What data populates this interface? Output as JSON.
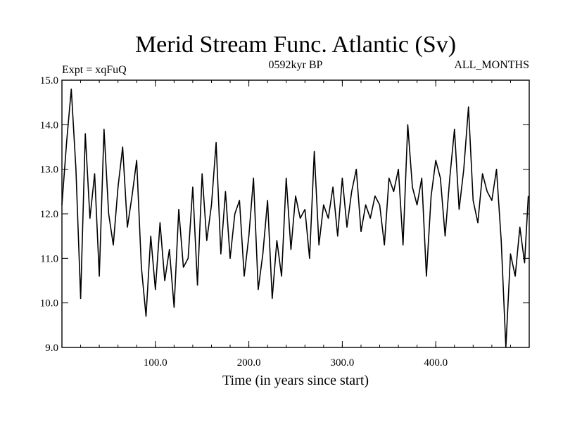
{
  "chart_data": {
    "type": "line",
    "title": "Merid Stream Func. Atlantic (Sv)",
    "subtitle_left": "Expt = xqFuQ",
    "subtitle_center": "0592kyr BP",
    "subtitle_right": "ALL_MONTHS",
    "xlabel": "Time (in years since start)",
    "ylabel": "",
    "xlim": [
      0,
      500
    ],
    "ylim": [
      9.0,
      15.0
    ],
    "xticks": [
      100,
      200,
      300,
      400
    ],
    "xtick_labels": [
      "100.0",
      "200.0",
      "300.0",
      "400.0"
    ],
    "yticks": [
      9,
      10,
      11,
      12,
      13,
      14,
      15
    ],
    "ytick_labels": [
      "9.0",
      "10.0",
      "11.0",
      "12.0",
      "13.0",
      "14.0",
      "15.0"
    ],
    "grid": false,
    "series": [
      {
        "name": "Merid Stream Func. Atlantic",
        "color": "#000000",
        "x": [
          0,
          5,
          10,
          15,
          20,
          25,
          30,
          35,
          40,
          45,
          50,
          55,
          60,
          65,
          70,
          75,
          80,
          85,
          90,
          95,
          100,
          105,
          110,
          115,
          120,
          125,
          130,
          135,
          140,
          145,
          150,
          155,
          160,
          165,
          170,
          175,
          180,
          185,
          190,
          195,
          200,
          205,
          210,
          215,
          220,
          225,
          230,
          235,
          240,
          245,
          250,
          255,
          260,
          265,
          270,
          275,
          280,
          285,
          290,
          295,
          300,
          305,
          310,
          315,
          320,
          325,
          330,
          335,
          340,
          345,
          350,
          355,
          360,
          365,
          370,
          375,
          380,
          385,
          390,
          395,
          400,
          405,
          410,
          415,
          420,
          425,
          430,
          435,
          440,
          445,
          450,
          455,
          460,
          465,
          470,
          475,
          480,
          485,
          490,
          495,
          499
        ],
        "values": [
          12.2,
          13.6,
          14.8,
          13.0,
          10.1,
          13.8,
          11.9,
          12.9,
          10.6,
          13.9,
          12.0,
          11.3,
          12.6,
          13.5,
          11.7,
          12.4,
          13.2,
          10.8,
          9.7,
          11.5,
          10.3,
          11.8,
          10.5,
          11.2,
          9.9,
          12.1,
          10.8,
          11.0,
          12.6,
          10.4,
          12.9,
          11.4,
          12.2,
          13.6,
          11.1,
          12.5,
          11.0,
          12.0,
          12.3,
          10.6,
          11.5,
          12.8,
          10.3,
          11.1,
          12.3,
          10.1,
          11.4,
          10.6,
          12.8,
          11.2,
          12.4,
          11.9,
          12.1,
          11.0,
          13.4,
          11.3,
          12.2,
          11.9,
          12.6,
          11.5,
          12.8,
          11.7,
          12.5,
          13.0,
          11.6,
          12.2,
          11.9,
          12.4,
          12.2,
          11.3,
          12.8,
          12.5,
          13.0,
          11.3,
          14.0,
          12.6,
          12.2,
          12.8,
          10.6,
          12.4,
          13.2,
          12.8,
          11.5,
          12.8,
          13.9,
          12.1,
          13.0,
          14.4,
          12.3,
          11.8,
          12.9,
          12.5,
          12.3,
          13.0,
          11.4,
          9.0,
          11.1,
          10.6,
          11.7,
          10.9,
          12.4
        ]
      }
    ]
  }
}
